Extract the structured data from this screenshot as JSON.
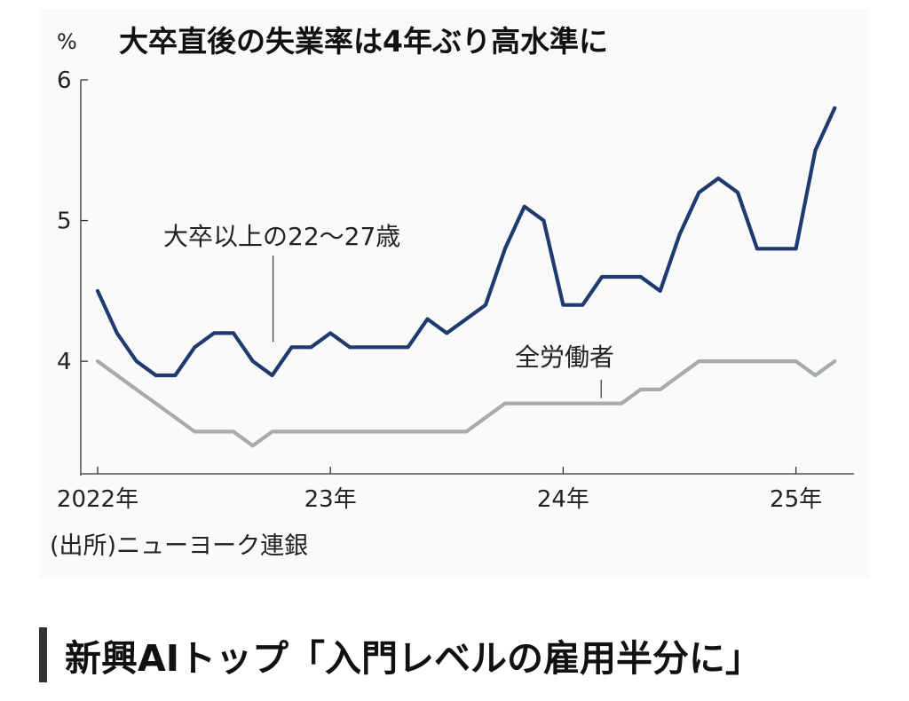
{
  "chart_data": {
    "type": "line",
    "title": "大卒直後の失業率は4年ぶり高水準に",
    "unit": "%",
    "ylim": [
      3.2,
      6
    ],
    "yticks": [
      4,
      5,
      6
    ],
    "x_tick_labels": [
      "2022年",
      "23年",
      "24年",
      "25年"
    ],
    "source": "(出所)ニューヨーク連銀",
    "grid": false,
    "legend": "none",
    "series": [
      {
        "name": "大卒以上の22〜27歳",
        "color": "#1f3a6e",
        "x": [
          "2022-01",
          "2022-02",
          "2022-03",
          "2022-04",
          "2022-05",
          "2022-06",
          "2022-07",
          "2022-08",
          "2022-09",
          "2022-10",
          "2022-11",
          "2022-12",
          "2023-01",
          "2023-02",
          "2023-03",
          "2023-04",
          "2023-05",
          "2023-06",
          "2023-07",
          "2023-08",
          "2023-09",
          "2023-10",
          "2023-11",
          "2023-12",
          "2024-01",
          "2024-02",
          "2024-03",
          "2024-04",
          "2024-05",
          "2024-06",
          "2024-07",
          "2024-08",
          "2024-09",
          "2024-10",
          "2024-11",
          "2024-12",
          "2025-01",
          "2025-02",
          "2025-03"
        ],
        "values": [
          4.5,
          4.2,
          4.0,
          3.9,
          3.9,
          4.1,
          4.2,
          4.2,
          4.0,
          3.9,
          4.1,
          4.1,
          4.2,
          4.1,
          4.1,
          4.1,
          4.1,
          4.3,
          4.2,
          4.3,
          4.4,
          4.8,
          5.1,
          5.0,
          4.4,
          4.4,
          4.6,
          4.6,
          4.6,
          4.5,
          4.9,
          5.2,
          5.3,
          5.2,
          4.8,
          4.8,
          4.8,
          5.5,
          5.8
        ]
      },
      {
        "name": "全労働者",
        "color": "#a7abae",
        "x": [
          "2022-01",
          "2022-02",
          "2022-03",
          "2022-04",
          "2022-05",
          "2022-06",
          "2022-07",
          "2022-08",
          "2022-09",
          "2022-10",
          "2022-11",
          "2022-12",
          "2023-01",
          "2023-02",
          "2023-03",
          "2023-04",
          "2023-05",
          "2023-06",
          "2023-07",
          "2023-08",
          "2023-09",
          "2023-10",
          "2023-11",
          "2023-12",
          "2024-01",
          "2024-02",
          "2024-03",
          "2024-04",
          "2024-05",
          "2024-06",
          "2024-07",
          "2024-08",
          "2024-09",
          "2024-10",
          "2024-11",
          "2024-12",
          "2025-01",
          "2025-02",
          "2025-03"
        ],
        "values": [
          4.0,
          3.9,
          3.8,
          3.7,
          3.6,
          3.5,
          3.5,
          3.5,
          3.4,
          3.5,
          3.5,
          3.5,
          3.5,
          3.5,
          3.5,
          3.5,
          3.5,
          3.5,
          3.5,
          3.5,
          3.6,
          3.7,
          3.7,
          3.7,
          3.7,
          3.7,
          3.7,
          3.7,
          3.8,
          3.8,
          3.9,
          4.0,
          4.0,
          4.0,
          4.0,
          4.0,
          4.0,
          3.9,
          4.0
        ]
      }
    ]
  },
  "headline": "新興AIトップ「入門レベルの雇用半分に」"
}
